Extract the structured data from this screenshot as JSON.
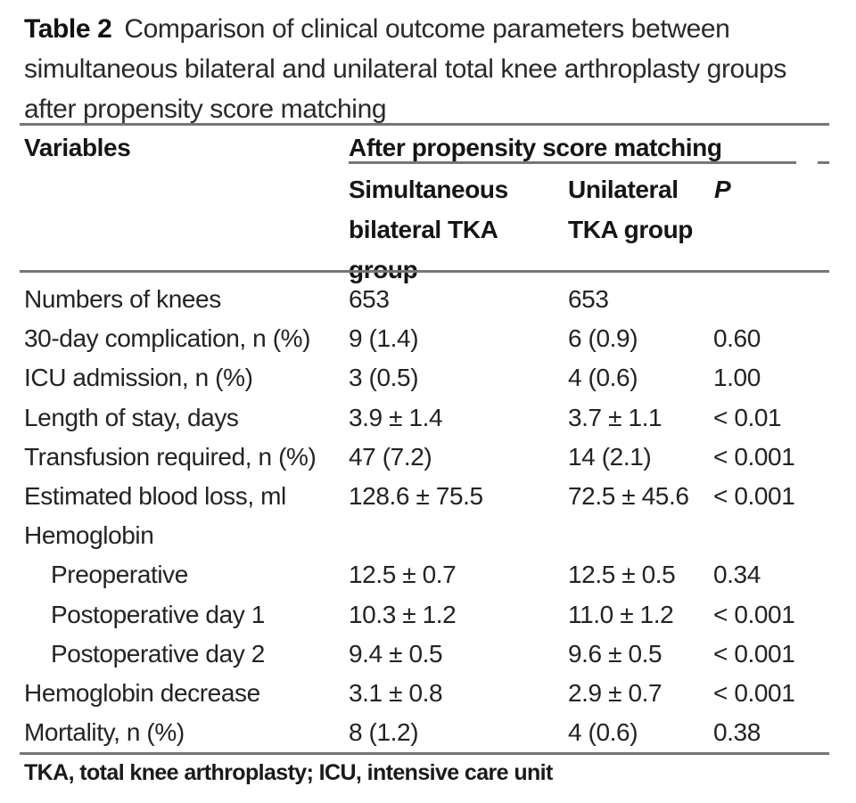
{
  "theme": {
    "background": "#ffffff",
    "text_color": "#1c1c1c",
    "rule_color": "#767676"
  },
  "title": {
    "label": "Table 2",
    "text": "Comparison of clinical outcome parameters between simultaneous bilateral and unilateral total knee arthroplasty groups after propensity score matching"
  },
  "table": {
    "columns": {
      "variables": "Variables",
      "span_header": "After propensity score matching",
      "group1": "Simultaneous bilateral TKA group",
      "group2": "Unilateral TKA group",
      "p": "P"
    },
    "rows": [
      {
        "label": "Numbers of knees",
        "group1": "653",
        "group2": "653",
        "p": ""
      },
      {
        "label": "30-day complication, n (%)",
        "group1": "9 (1.4)",
        "group2": "6 (0.9)",
        "p": "0.60"
      },
      {
        "label": "ICU admission, n (%)",
        "group1": "3 (0.5)",
        "group2": "4 (0.6)",
        "p": "1.00"
      },
      {
        "label": "Length of stay, days",
        "group1": "3.9 ± 1.4",
        "group2": "3.7 ± 1.1",
        "p": "< 0.01"
      },
      {
        "label": "Transfusion required, n (%)",
        "group1": "47 (7.2)",
        "group2": "14 (2.1)",
        "p": "< 0.001"
      },
      {
        "label": "Estimated blood loss, ml",
        "group1": "128.6 ± 75.5",
        "group2": "72.5 ± 45.6",
        "p": "< 0.001"
      },
      {
        "label": "Hemoglobin",
        "group1": "",
        "group2": "",
        "p": ""
      },
      {
        "label": "Preoperative",
        "group1": "12.5 ± 0.7",
        "group2": "12.5 ± 0.5",
        "p": "0.34"
      },
      {
        "label": "Postoperative day 1",
        "group1": "10.3 ± 1.2",
        "group2": "11.0 ± 1.2",
        "p": "< 0.001"
      },
      {
        "label": "Postoperative day 2",
        "group1": "9.4 ± 0.5",
        "group2": "9.6 ± 0.5",
        "p": "< 0.001"
      },
      {
        "label": "Hemoglobin decrease",
        "group1": "3.1 ± 0.8",
        "group2": "2.9 ± 0.7",
        "p": "< 0.001"
      },
      {
        "label": "Mortality, n (%)",
        "group1": "8 (1.2)",
        "group2": "4 (0.6)",
        "p": "0.38"
      }
    ]
  },
  "footnote": "TKA, total knee arthroplasty; ICU, intensive care unit"
}
